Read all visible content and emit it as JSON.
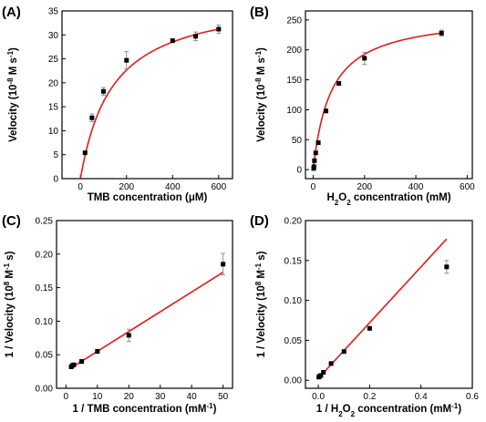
{
  "chart_data": [
    {
      "panel_label": "(A)",
      "type": "scatter",
      "xlabel_parts": [
        {
          "t": "TMB concentration (μM)",
          "s": "n"
        }
      ],
      "ylabel_parts": [
        {
          "t": "Velocity (10",
          "s": "n"
        },
        {
          "t": "-8",
          "s": "sup"
        },
        {
          "t": " M s",
          "s": "n"
        },
        {
          "t": "-1",
          "s": "sup"
        },
        {
          "t": ")",
          "s": "n"
        }
      ],
      "xlim": [
        -80,
        660
      ],
      "ylim": [
        0,
        35
      ],
      "xticks": [
        0,
        200,
        400,
        600
      ],
      "yticks": [
        0,
        5,
        10,
        15,
        20,
        25,
        30,
        35
      ],
      "fit": {
        "model": "michaelis-menten",
        "vmax": 38.5,
        "km": 140
      },
      "points": [
        {
          "x": 20,
          "y": 5.4,
          "err": 0.3
        },
        {
          "x": 50,
          "y": 12.7,
          "err": 0.8
        },
        {
          "x": 100,
          "y": 18.2,
          "err": 0.8
        },
        {
          "x": 200,
          "y": 24.7,
          "err": 1.8
        },
        {
          "x": 400,
          "y": 28.8,
          "err": 0.4
        },
        {
          "x": 500,
          "y": 29.7,
          "err": 0.9
        },
        {
          "x": 600,
          "y": 31.2,
          "err": 0.9
        }
      ]
    },
    {
      "panel_label": "(B)",
      "type": "scatter",
      "xlabel_parts": [
        {
          "t": "H",
          "s": "n"
        },
        {
          "t": "2",
          "s": "sub"
        },
        {
          "t": "O",
          "s": "n"
        },
        {
          "t": "2",
          "s": "sub"
        },
        {
          "t": " concentration (mM)",
          "s": "n"
        }
      ],
      "ylabel_parts": [
        {
          "t": "Velocity (10",
          "s": "n"
        },
        {
          "t": "-8",
          "s": "sup"
        },
        {
          "t": " M s",
          "s": "n"
        },
        {
          "t": "-1",
          "s": "sup"
        },
        {
          "t": ")",
          "s": "n"
        }
      ],
      "xlim": [
        -30,
        620
      ],
      "ylim": [
        -15,
        265
      ],
      "xticks": [
        0,
        200,
        400,
        600
      ],
      "yticks": [
        0,
        50,
        100,
        150,
        200,
        250
      ],
      "fit": {
        "model": "michaelis-menten",
        "vmax": 260,
        "km": 70
      },
      "points": [
        {
          "x": 2,
          "y": 2,
          "err": 0
        },
        {
          "x": 3,
          "y": 5,
          "err": 0
        },
        {
          "x": 5,
          "y": 15,
          "err": 0
        },
        {
          "x": 10,
          "y": 28,
          "err": 0
        },
        {
          "x": 20,
          "y": 45,
          "err": 2
        },
        {
          "x": 50,
          "y": 98,
          "err": 3
        },
        {
          "x": 100,
          "y": 144,
          "err": 3
        },
        {
          "x": 200,
          "y": 186,
          "err": 10
        },
        {
          "x": 500,
          "y": 228,
          "err": 5
        }
      ]
    },
    {
      "panel_label": "(C)",
      "type": "scatter",
      "xlabel_parts": [
        {
          "t": "1 / TMB concentration (mM",
          "s": "n"
        },
        {
          "t": "-1",
          "s": "sup"
        },
        {
          "t": ")",
          "s": "n"
        }
      ],
      "ylabel_parts": [
        {
          "t": "1 / Velocity (10",
          "s": "n"
        },
        {
          "t": "8",
          "s": "sup"
        },
        {
          "t": " M",
          "s": "n"
        },
        {
          "t": "-1",
          "s": "sup"
        },
        {
          "t": " s)",
          "s": "n"
        }
      ],
      "xlim": [
        -3,
        53
      ],
      "ylim": [
        0,
        0.25
      ],
      "xticks": [
        0,
        10,
        20,
        30,
        40,
        50
      ],
      "yticks": [
        0.0,
        0.05,
        0.1,
        0.15,
        0.2,
        0.25
      ],
      "ytick_decimals": 2,
      "fit": {
        "model": "linear",
        "x0": 1.5,
        "y0": 0.03,
        "x1": 50,
        "y1": 0.173
      },
      "points": [
        {
          "x": 1.67,
          "y": 0.032,
          "err": 0.001
        },
        {
          "x": 2,
          "y": 0.034,
          "err": 0.001
        },
        {
          "x": 2.5,
          "y": 0.035,
          "err": 0.002
        },
        {
          "x": 5,
          "y": 0.04,
          "err": 0.003
        },
        {
          "x": 10,
          "y": 0.055,
          "err": 0.003
        },
        {
          "x": 20,
          "y": 0.079,
          "err": 0.009
        },
        {
          "x": 50,
          "y": 0.185,
          "err": 0.016
        }
      ]
    },
    {
      "panel_label": "(D)",
      "type": "scatter",
      "xlabel_parts": [
        {
          "t": "1 / H",
          "s": "n"
        },
        {
          "t": "2",
          "s": "sub"
        },
        {
          "t": "O",
          "s": "n"
        },
        {
          "t": "2",
          "s": "sub"
        },
        {
          "t": " concentration (mM",
          "s": "n"
        },
        {
          "t": "-1",
          "s": "sup"
        },
        {
          "t": ")",
          "s": "n"
        }
      ],
      "ylabel_parts": [
        {
          "t": "1 / Velocity (10",
          "s": "n"
        },
        {
          "t": "8",
          "s": "sup"
        },
        {
          "t": " M",
          "s": "n"
        },
        {
          "t": "-1",
          "s": "sup"
        },
        {
          "t": " s)",
          "s": "n"
        }
      ],
      "xlim": [
        -0.05,
        0.6
      ],
      "ylim": [
        -0.01,
        0.2
      ],
      "xticks": [
        0.0,
        0.2,
        0.4,
        0.6
      ],
      "xtick_decimals": 1,
      "yticks": [
        0.0,
        0.05,
        0.1,
        0.15,
        0.2
      ],
      "ytick_decimals": 2,
      "fit": {
        "model": "linear",
        "x0": 0.002,
        "y0": 0.003,
        "x1": 0.5,
        "y1": 0.177
      },
      "points": [
        {
          "x": 0.002,
          "y": 0.004,
          "err": 0
        },
        {
          "x": 0.005,
          "y": 0.005,
          "err": 0
        },
        {
          "x": 0.01,
          "y": 0.006,
          "err": 0
        },
        {
          "x": 0.02,
          "y": 0.01,
          "err": 0.001
        },
        {
          "x": 0.05,
          "y": 0.021,
          "err": 0.001
        },
        {
          "x": 0.1,
          "y": 0.036,
          "err": 0.001
        },
        {
          "x": 0.2,
          "y": 0.065,
          "err": 0.002
        },
        {
          "x": 0.5,
          "y": 0.142,
          "err": 0.008
        }
      ]
    }
  ],
  "colors": {
    "fit_line": "#e31b1b",
    "marker": "#000000",
    "error_bar": "#888888"
  }
}
